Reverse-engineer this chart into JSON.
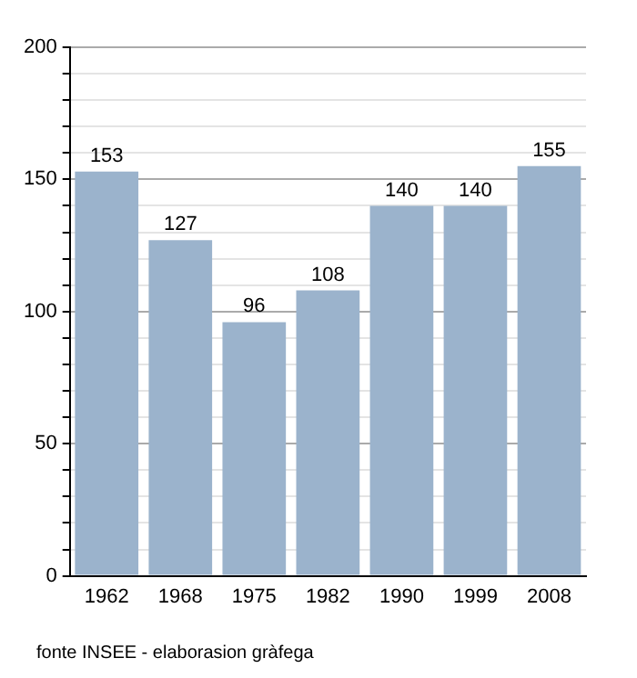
{
  "chart_data": {
    "type": "bar",
    "categories": [
      "1962",
      "1968",
      "1975",
      "1982",
      "1990",
      "1999",
      "2008"
    ],
    "values": [
      153,
      127,
      96,
      108,
      140,
      140,
      155
    ],
    "color": "#9bb3cc",
    "ylim": [
      0,
      200
    ],
    "yticks": [
      0,
      {
        "value": 10,
        "label": null
      },
      {
        "value": 20,
        "label": null
      },
      {
        "value": 30,
        "label": null
      },
      {
        "value": 40,
        "label": null
      },
      50,
      {
        "value": 60,
        "label": null
      },
      {
        "value": 70,
        "label": null
      },
      {
        "value": 80,
        "label": null
      },
      {
        "value": 90,
        "label": null
      },
      100,
      {
        "value": 110,
        "label": null
      },
      {
        "value": 120,
        "label": null
      },
      {
        "value": 130,
        "label": null
      },
      {
        "value": 140,
        "label": null
      },
      150,
      {
        "value": 160,
        "label": null
      },
      {
        "value": 170,
        "label": null
      },
      {
        "value": 180,
        "label": null
      },
      {
        "value": 190,
        "label": null
      },
      200
    ],
    "grid": "y",
    "data_labels": true,
    "annotations": [
      "fonte INSEE - elaborasion gràfega"
    ]
  }
}
